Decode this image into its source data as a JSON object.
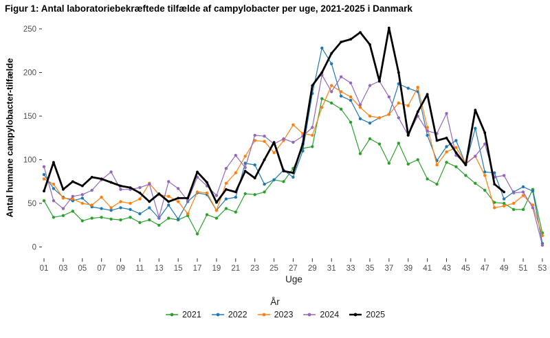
{
  "chart_data": {
    "type": "line",
    "title": "Figur 1: Antal laboratoriebekræftede tilfælde af campylobacter per uge, 2021-2025 i Danmark",
    "xlabel": "Uge",
    "ylabel": "Antal humane campylobacter-tilfælde",
    "legend_title": "År",
    "legend_position": "bottom",
    "grid": false,
    "background": "#ffffff",
    "tick_color": "#333333",
    "tick_label_color": "#4d4d4d",
    "x_tick_labels": [
      "01",
      "03",
      "05",
      "07",
      "09",
      "11",
      "13",
      "15",
      "17",
      "19",
      "21",
      "23",
      "25",
      "27",
      "29",
      "31",
      "33",
      "35",
      "37",
      "39",
      "41",
      "43",
      "45",
      "47",
      "49",
      "51",
      "53"
    ],
    "y_ticks": [
      0,
      50,
      100,
      150,
      200,
      250
    ],
    "xlim_weeks": [
      1,
      53
    ],
    "ylim": [
      0,
      255
    ],
    "x_start_week": 1,
    "series": [
      {
        "name": "2021",
        "color": "#2CA02C",
        "values": [
          53,
          34,
          36,
          41,
          30,
          33,
          34,
          32,
          31,
          34,
          28,
          31,
          25,
          33,
          31,
          36,
          15,
          37,
          33,
          44,
          40,
          61,
          60,
          63,
          77,
          75,
          90,
          113,
          115,
          170,
          165,
          158,
          143,
          107,
          124,
          118,
          96,
          119,
          95,
          100,
          78,
          72,
          97,
          92,
          82,
          73,
          65,
          51,
          50,
          43,
          43,
          66,
          16
        ]
      },
      {
        "name": "2022",
        "color": "#1F77B4",
        "values": [
          83,
          67,
          57,
          53,
          56,
          46,
          44,
          42,
          45,
          43,
          38,
          45,
          33,
          48,
          32,
          52,
          62,
          60,
          42,
          55,
          57,
          96,
          94,
          72,
          77,
          88,
          80,
          110,
          176,
          228,
          210,
          173,
          168,
          147,
          142,
          148,
          152,
          187,
          182,
          178,
          128,
          99,
          115,
          122,
          95,
          136,
          86,
          85,
          55,
          63,
          69,
          64,
          4
        ]
      },
      {
        "name": "2023",
        "color": "#FF7F0E",
        "values": [
          78,
          72,
          56,
          55,
          50,
          48,
          57,
          45,
          52,
          50,
          55,
          73,
          60,
          58,
          52,
          38,
          63,
          62,
          42,
          73,
          85,
          104,
          122,
          121,
          108,
          122,
          140,
          130,
          128,
          160,
          185,
          178,
          172,
          160,
          150,
          148,
          152,
          165,
          162,
          183,
          137,
          94,
          109,
          114,
          96,
          104,
          82,
          45,
          47,
          50,
          59,
          48,
          13
        ]
      },
      {
        "name": "2024",
        "color": "#9467BD",
        "values": [
          92,
          53,
          44,
          58,
          60,
          65,
          77,
          86,
          66,
          66,
          68,
          72,
          34,
          75,
          67,
          53,
          80,
          70,
          59,
          90,
          105,
          91,
          128,
          127,
          118,
          124,
          120,
          127,
          137,
          197,
          178,
          195,
          188,
          163,
          185,
          190,
          172,
          148,
          128,
          150,
          133,
          130,
          153,
          105,
          95,
          104,
          118,
          80,
          82,
          62,
          63,
          45,
          2
        ]
      },
      {
        "name": "2025",
        "color": "#000000",
        "thick": true,
        "values": [
          64,
          97,
          66,
          75,
          70,
          80,
          78,
          74,
          70,
          68,
          62,
          52,
          61,
          52,
          56,
          56,
          86,
          74,
          51,
          66,
          63,
          87,
          79,
          100,
          120,
          87,
          85,
          118,
          185,
          200,
          222,
          235,
          238,
          246,
          232,
          190,
          251,
          200,
          128,
          155,
          175,
          122,
          125,
          108,
          94,
          157,
          131,
          72,
          63
        ]
      }
    ]
  }
}
